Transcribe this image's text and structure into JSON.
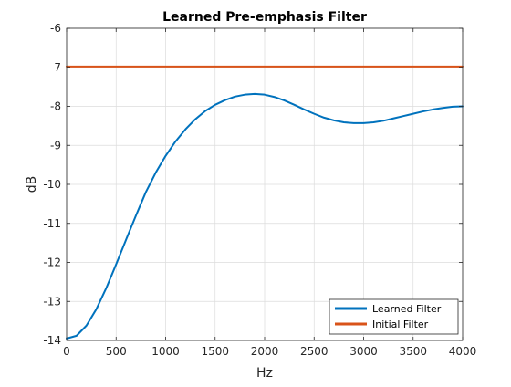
{
  "chart_data": {
    "type": "line",
    "title": "Learned Pre-emphasis Filter",
    "xlabel": "Hz",
    "ylabel": "dB",
    "xlim": [
      0,
      4000
    ],
    "ylim": [
      -14,
      -6
    ],
    "xticks": [
      0,
      500,
      1000,
      1500,
      2000,
      2500,
      3000,
      3500,
      4000
    ],
    "yticks": [
      -14,
      -13,
      -12,
      -11,
      -10,
      -9,
      -8,
      -7,
      -6
    ],
    "grid": true,
    "legend_position": "bottom-right",
    "series": [
      {
        "name": "Learned Filter",
        "color": "#0072BD",
        "x": [
          0,
          100,
          200,
          300,
          400,
          500,
          600,
          700,
          800,
          900,
          1000,
          1100,
          1200,
          1300,
          1400,
          1500,
          1600,
          1700,
          1800,
          1900,
          2000,
          2100,
          2200,
          2300,
          2400,
          2500,
          2600,
          2700,
          2800,
          2900,
          3000,
          3100,
          3200,
          3300,
          3400,
          3500,
          3600,
          3700,
          3800,
          3900,
          4000
        ],
        "y": [
          -13.95,
          -13.88,
          -13.62,
          -13.2,
          -12.66,
          -12.05,
          -11.42,
          -10.8,
          -10.2,
          -9.7,
          -9.27,
          -8.9,
          -8.59,
          -8.33,
          -8.12,
          -7.96,
          -7.84,
          -7.75,
          -7.7,
          -7.68,
          -7.7,
          -7.76,
          -7.85,
          -7.96,
          -8.08,
          -8.19,
          -8.29,
          -8.36,
          -8.41,
          -8.43,
          -8.43,
          -8.41,
          -8.37,
          -8.31,
          -8.25,
          -8.19,
          -8.13,
          -8.08,
          -8.04,
          -8.01,
          -8.0
        ]
      },
      {
        "name": "Initial Filter",
        "color": "#D95319",
        "x": [
          0,
          4000
        ],
        "y": [
          -6.98,
          -6.98
        ]
      }
    ]
  }
}
